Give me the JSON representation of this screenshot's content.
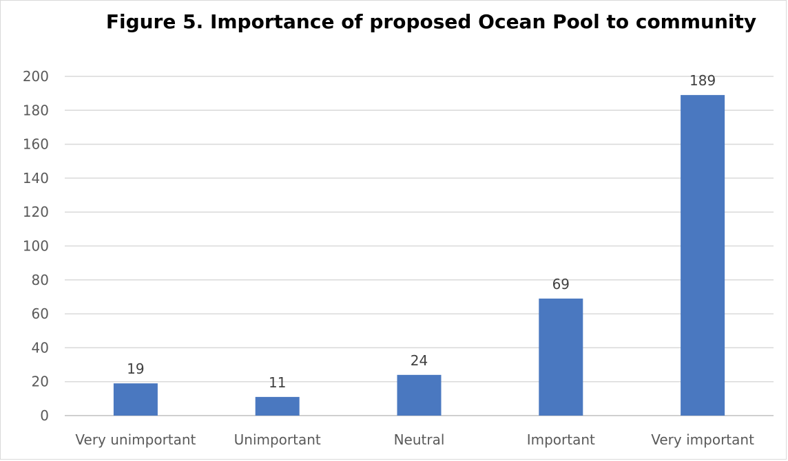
{
  "chart_data": {
    "type": "bar",
    "title": "Figure 5. Importance of proposed Ocean Pool to community",
    "xlabel": "",
    "ylabel": "",
    "categories": [
      "Very unimportant",
      "Unimportant",
      "Neutral",
      "Important",
      "Very important"
    ],
    "values": [
      19,
      11,
      24,
      69,
      189
    ],
    "data_labels": [
      "19",
      "11",
      "24",
      "69",
      "189"
    ],
    "y_ticks": [
      "0",
      "20",
      "40",
      "60",
      "80",
      "100",
      "120",
      "140",
      "160",
      "180",
      "200"
    ],
    "ylim": [
      0,
      200
    ],
    "grid": true,
    "legend": "none",
    "bar_color": "#4a78c0"
  }
}
